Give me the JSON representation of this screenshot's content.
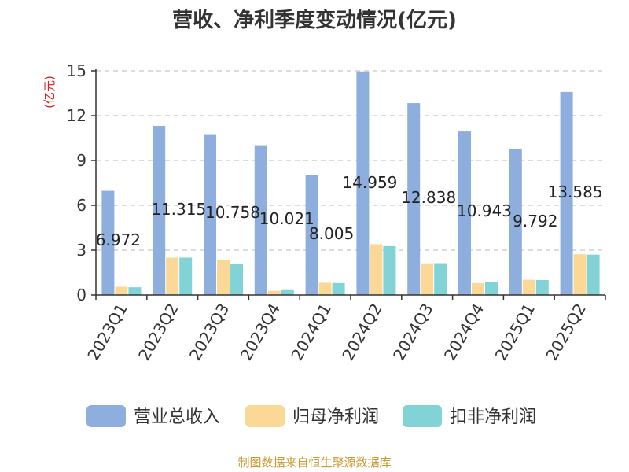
{
  "chart_data": {
    "type": "bar",
    "title": "营收、净利季度变动情况(亿元)",
    "ylabel": "(亿元)",
    "xlabel": "",
    "ylim": [
      0,
      15
    ],
    "yticks": [
      0,
      3,
      6,
      9,
      12,
      15
    ],
    "grid": true,
    "legend_position": "bottom",
    "categories": [
      "2023Q1",
      "2023Q2",
      "2023Q3",
      "2023Q4",
      "2024Q1",
      "2024Q2",
      "2024Q3",
      "2024Q4",
      "2025Q1",
      "2025Q2"
    ],
    "series": [
      {
        "name": "营业总收入",
        "color": "#8eaedd",
        "values": [
          6.972,
          11.315,
          10.758,
          10.021,
          8.005,
          14.959,
          12.838,
          10.943,
          9.792,
          13.585
        ],
        "labeled": true
      },
      {
        "name": "归母净利润",
        "color": "#fcd897",
        "values": [
          0.55,
          2.5,
          2.35,
          0.28,
          0.82,
          3.4,
          2.12,
          0.8,
          1.02,
          2.72
        ],
        "labeled": false
      },
      {
        "name": "扣非净利润",
        "color": "#82d3d6",
        "values": [
          0.52,
          2.5,
          2.08,
          0.33,
          0.8,
          3.27,
          2.13,
          0.85,
          1.0,
          2.7
        ],
        "labeled": false
      }
    ],
    "data_labels": [
      "6.972",
      "11.315",
      "10.758",
      "10.021",
      "8.005",
      "14.959",
      "12.838",
      "10.943",
      "9.792",
      "13.585"
    ]
  },
  "source": "制图数据来自恒生聚源数据库"
}
